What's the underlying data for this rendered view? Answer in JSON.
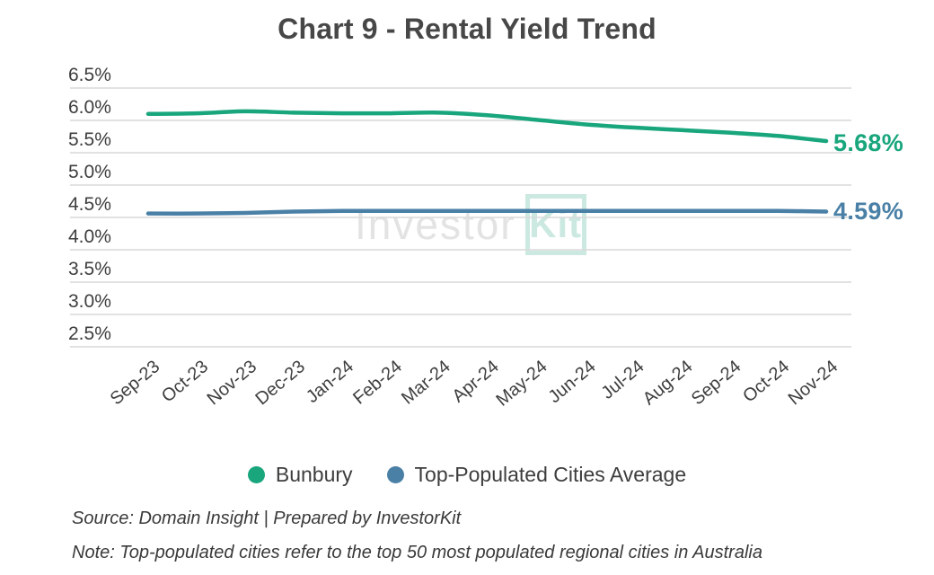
{
  "watermark": {
    "part1": "Investor",
    "part2": "Kit"
  },
  "footer": {
    "source": "Source: Domain Insight | Prepared by InvestorKit",
    "note": "Note: Top-populated cities refer to the top 50 most populated regional cities in Australia"
  },
  "colors": {
    "bunbury_green": "#19a67d",
    "cities_blue": "#4a80a6",
    "gridline": "#d9d9d9",
    "axis_text": "#3e3e3e",
    "title_text": "#474747",
    "watermark_gray": "#e3e3e3",
    "watermark_teal": "#cbe9e0"
  },
  "chart_data": {
    "type": "line",
    "title": "Chart 9 - Rental Yield Trend",
    "x": [
      "Sep-23",
      "Oct-23",
      "Nov-23",
      "Dec-23",
      "Jan-24",
      "Feb-24",
      "Mar-24",
      "Apr-24",
      "May-24",
      "Jun-24",
      "Jul-24",
      "Aug-24",
      "Sep-24",
      "Oct-24",
      "Nov-24"
    ],
    "series": [
      {
        "name": "Bunbury",
        "color": "#19a67d",
        "end_label": "5.68%",
        "values": [
          6.1,
          6.11,
          6.14,
          6.12,
          6.11,
          6.11,
          6.12,
          6.08,
          6.01,
          5.94,
          5.89,
          5.85,
          5.81,
          5.76,
          5.68
        ]
      },
      {
        "name": "Top-Populated Cities Average",
        "color": "#4a80a6",
        "end_label": "4.59%",
        "values": [
          4.56,
          4.56,
          4.57,
          4.59,
          4.6,
          4.6,
          4.6,
          4.6,
          4.6,
          4.6,
          4.6,
          4.6,
          4.6,
          4.6,
          4.59
        ]
      }
    ],
    "xlabel": "",
    "ylabel": "",
    "yticks": [
      "6.5%",
      "6.0%",
      "5.5%",
      "5.0%",
      "4.5%",
      "4.0%",
      "3.5%",
      "3.0%",
      "2.5%"
    ],
    "ylim": [
      2.5,
      6.5
    ],
    "ytick_step": 0.5,
    "grid": true,
    "legend_position": "bottom"
  }
}
